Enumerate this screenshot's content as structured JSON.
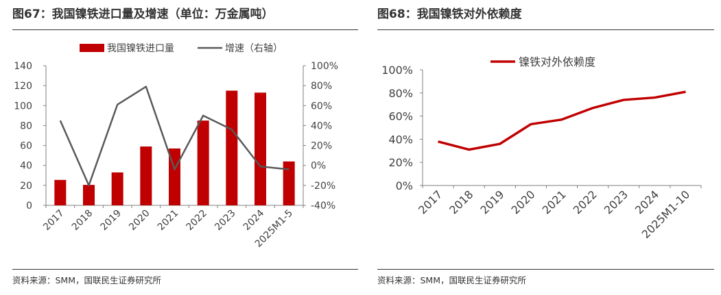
{
  "left": {
    "title": "图67：我国镍铁进口量及增速（单位：万金属吨）",
    "source": "资料来源：SMM，国联民生证券研究所",
    "chart_data": {
      "type": "bar",
      "categories": [
        "2017",
        "2018",
        "2019",
        "2020",
        "2021",
        "2022",
        "2023",
        "2024",
        "2025M1-5"
      ],
      "series": [
        {
          "name": "我国镍铁进口量",
          "type": "bar",
          "axis": "left",
          "color": "#C00000",
          "values": [
            25.5,
            20.5,
            33,
            59,
            57,
            85,
            115,
            113,
            44
          ]
        },
        {
          "name": "增速（右轴）",
          "type": "line",
          "axis": "right",
          "color": "#595959",
          "values": [
            45,
            -20,
            61,
            79,
            -4,
            50,
            36,
            -1,
            -4
          ]
        }
      ],
      "ylim": [
        0,
        140
      ],
      "yticks": [
        0,
        20,
        40,
        60,
        80,
        100,
        120,
        140
      ],
      "y2lim": [
        -40,
        100
      ],
      "y2ticks": [
        "-40%",
        "-20%",
        "0%",
        "20%",
        "40%",
        "60%",
        "80%",
        "100%"
      ],
      "legend": "top-center"
    }
  },
  "right": {
    "title": "图68：我国镍铁对外依赖度",
    "source": "资料来源：SMM，国联民生证券研究所",
    "chart_data": {
      "type": "line",
      "categories": [
        "2017",
        "2018",
        "2019",
        "2020",
        "2021",
        "2022",
        "2023",
        "2024",
        "2025M1-10"
      ],
      "series": [
        {
          "name": "镍铁对外依赖度",
          "color": "#C00000",
          "values": [
            38,
            31,
            36,
            53,
            57,
            67,
            74,
            76,
            81
          ]
        }
      ],
      "ylim": [
        0,
        100
      ],
      "yticks": [
        "0%",
        "20%",
        "40%",
        "60%",
        "80%",
        "100%"
      ],
      "legend": "top-left"
    }
  }
}
